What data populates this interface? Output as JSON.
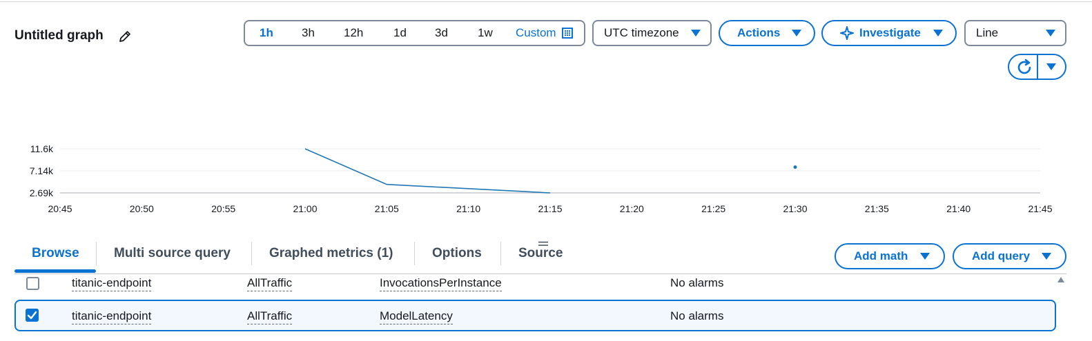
{
  "header": {
    "title": "Untitled graph",
    "time_ranges": [
      "1h",
      "3h",
      "12h",
      "1d",
      "3d",
      "1w"
    ],
    "active_range": "1h",
    "custom_label": "Custom",
    "timezone": "UTC timezone",
    "actions_label": "Actions",
    "investigate_label": "Investigate",
    "chart_type": "Line"
  },
  "chart_data": {
    "type": "line",
    "x_ticks": [
      "20:45",
      "20:50",
      "20:55",
      "21:00",
      "21:05",
      "21:10",
      "21:15",
      "21:20",
      "21:25",
      "21:30",
      "21:35",
      "21:40",
      "21:45"
    ],
    "y_ticks": [
      "11.6k",
      "7.14k",
      "2.69k"
    ],
    "ylim": [
      2690,
      11600
    ],
    "series": [
      {
        "values": [
          {
            "x": "21:00",
            "y": 11600
          },
          {
            "x": "21:05",
            "y": 4400
          },
          {
            "x": "21:15",
            "y": 2690
          },
          {
            "x": "21:30",
            "y": 7900
          }
        ]
      }
    ],
    "color": "#1f77b4",
    "grid": true
  },
  "tabs": [
    {
      "label": "Browse",
      "active": true
    },
    {
      "label": "Multi source query",
      "active": false
    },
    {
      "label": "Graphed metrics (1)",
      "active": false
    },
    {
      "label": "Options",
      "active": false
    },
    {
      "label": "Source",
      "active": false
    }
  ],
  "buttons": {
    "add_math": "Add math",
    "add_query": "Add query"
  },
  "rows": [
    {
      "checked": false,
      "endpoint": "titanic-endpoint",
      "variant": "AllTraffic",
      "metric": "InvocationsPerInstance",
      "alarms": "No alarms"
    },
    {
      "checked": true,
      "endpoint": "titanic-endpoint",
      "variant": "AllTraffic",
      "metric": "ModelLatency",
      "alarms": "No alarms"
    }
  ],
  "colors": {
    "accent": "#0972d3",
    "border": "#7d8998",
    "selected_row_bg": "#f2f8fd"
  }
}
